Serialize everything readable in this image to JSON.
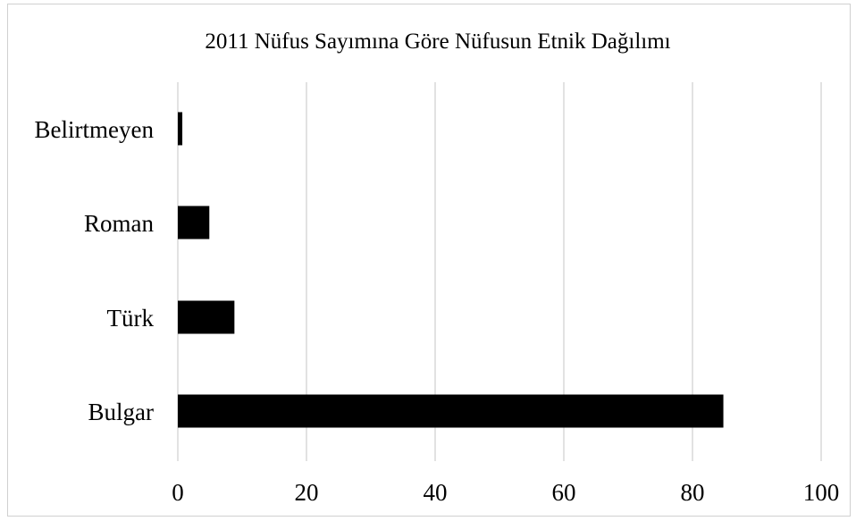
{
  "chart_data": {
    "type": "bar",
    "orientation": "horizontal",
    "title": "2011 Nüfus Sayımına Göre Nüfusun Etnik Dağılımı",
    "xlabel": "",
    "ylabel": "",
    "categories": [
      "Bulgar",
      "Türk",
      "Roman",
      "Belirtmeyen"
    ],
    "values": [
      84.8,
      8.8,
      4.9,
      0.7
    ],
    "xlim": [
      0,
      100
    ],
    "x_ticks": [
      "0",
      "20",
      "40",
      "60",
      "80",
      "100"
    ],
    "grid": "vertical",
    "legend": "none",
    "bar_color": "#000000",
    "grid_color": "#d9d9d9"
  }
}
